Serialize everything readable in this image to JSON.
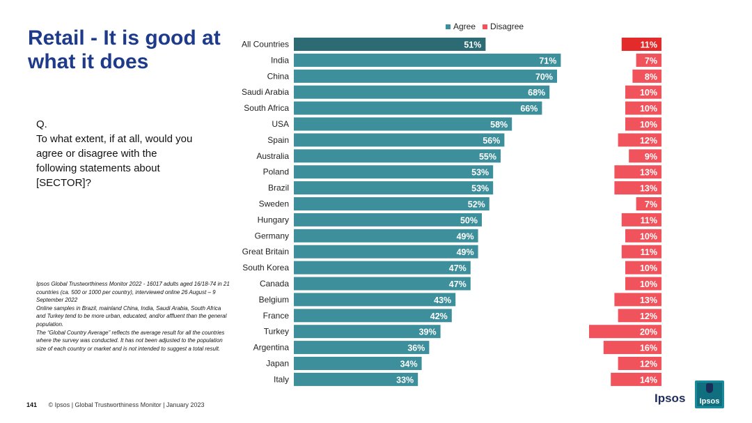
{
  "title": "Retail - It is good at what it does",
  "question": {
    "q": "Q.",
    "text": "To what extent, if at all, would you agree or disagree with the following statements about [SECTOR]?"
  },
  "source_notes": [
    "Ipsos Global Trustworthiness Monitor 2022 - 16017 adults aged 16/18-74 in 21 countries (ca. 500 or 1000 per country), interviewed online 26 August – 9 September 2022",
    "Online samples in Brazil, mainland China, India, Saudi Arabia, South Africa and Turkey tend to be more urban, educated, and/or affluent than the general population.",
    "The “Global Country Average” reflects the average result for all the countries where the survey was conducted. It has not been adjusted to the population size of each country or market and is not intended to suggest a total result."
  ],
  "footer": {
    "page_number": "141",
    "text": "© Ipsos | Global Trustworthiness Monitor | January 2023"
  },
  "logo": {
    "text": "Ipsos",
    "box_text": "Ipsos"
  },
  "colors": {
    "title": "#1e3a8a",
    "agree": "#3d8f9b",
    "agree_highlight": "#2c6b73",
    "disagree": "#f0535c",
    "disagree_highlight": "#e32b2b"
  },
  "chart_data": {
    "type": "bar",
    "orientation": "horizontal",
    "legend": [
      "Agree",
      "Disagree"
    ],
    "categories": [
      "All Countries",
      "India",
      "China",
      "Saudi Arabia",
      "South Africa",
      "USA",
      "Spain",
      "Australia",
      "Poland",
      "Brazil",
      "Sweden",
      "Hungary",
      "Germany",
      "Great Britain",
      "South Korea",
      "Canada",
      "Belgium",
      "France",
      "Turkey",
      "Argentina",
      "Japan",
      "Italy"
    ],
    "series": [
      {
        "name": "Agree",
        "values": [
          51,
          71,
          70,
          68,
          66,
          58,
          56,
          55,
          53,
          53,
          52,
          50,
          49,
          49,
          47,
          47,
          43,
          42,
          39,
          36,
          34,
          33
        ]
      },
      {
        "name": "Disagree",
        "values": [
          11,
          7,
          8,
          10,
          10,
          10,
          12,
          9,
          13,
          13,
          7,
          11,
          10,
          11,
          10,
          10,
          13,
          12,
          20,
          16,
          12,
          14
        ]
      }
    ],
    "value_suffix": "%",
    "highlight_category": "All Countries",
    "ylim": [
      0,
      100
    ]
  }
}
